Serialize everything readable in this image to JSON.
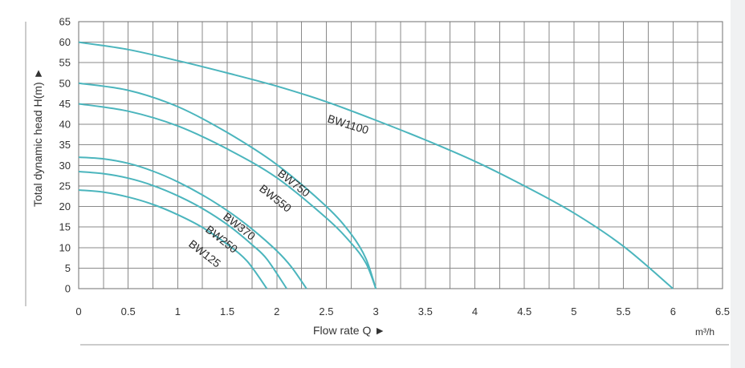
{
  "chart_data": {
    "type": "line",
    "title": "",
    "xlabel": "Flow rate Q ►",
    "ylabel": "Total dynamic head H(m) ►",
    "x_unit": "m³/h",
    "xlim": [
      0,
      6.5
    ],
    "ylim": [
      0,
      65
    ],
    "x_ticks": [
      "0",
      "0.5",
      "1",
      "1.5",
      "2",
      "2.5",
      "3",
      "3.5",
      "4",
      "4.5",
      "5",
      "5.5",
      "6",
      "6.5"
    ],
    "y_ticks": [
      "0",
      "5",
      "10",
      "15",
      "20",
      "25",
      "30",
      "35",
      "40",
      "45",
      "50",
      "55",
      "60",
      "65"
    ],
    "grid": true,
    "curve_color": "#4bb5bd",
    "series": [
      {
        "name": "BW1100",
        "x": [
          0,
          0.5,
          1,
          1.5,
          2,
          2.5,
          3,
          3.5,
          4,
          4.5,
          5,
          5.5,
          6
        ],
        "y": [
          60,
          58.2,
          55.5,
          52.5,
          49.3,
          45.5,
          41,
          36.2,
          31,
          25,
          18.4,
          10.3,
          0
        ]
      },
      {
        "name": "BW750",
        "x": [
          0,
          0.5,
          1,
          1.5,
          2,
          2.5,
          2.75,
          2.9,
          3
        ],
        "y": [
          50,
          48.3,
          44.3,
          38,
          30.2,
          20,
          13.3,
          7.3,
          0
        ]
      },
      {
        "name": "BW550",
        "x": [
          0,
          0.5,
          1,
          1.5,
          2,
          2.5,
          2.75,
          2.9,
          3
        ],
        "y": [
          45,
          43.2,
          39.6,
          34,
          27,
          17.2,
          11.1,
          6.2,
          0
        ]
      },
      {
        "name": "BW370",
        "x": [
          0,
          0.25,
          0.5,
          0.75,
          1,
          1.25,
          1.5,
          1.75,
          2,
          2.15,
          2.3
        ],
        "y": [
          32,
          31.6,
          30.5,
          28.6,
          26,
          22.8,
          19,
          14.5,
          9.2,
          5.2,
          0
        ]
      },
      {
        "name": "BW250",
        "x": [
          0,
          0.25,
          0.5,
          0.75,
          1,
          1.25,
          1.5,
          1.75,
          1.9,
          2.1
        ],
        "y": [
          28.5,
          28,
          26.9,
          25.1,
          22.6,
          19.5,
          15.6,
          10.7,
          7.2,
          0
        ]
      },
      {
        "name": "BW125",
        "x": [
          0,
          0.25,
          0.5,
          0.75,
          1,
          1.25,
          1.5,
          1.7,
          1.9
        ],
        "y": [
          24,
          23.5,
          22.3,
          20.5,
          18,
          14.9,
          10.8,
          6.7,
          0
        ]
      }
    ]
  }
}
